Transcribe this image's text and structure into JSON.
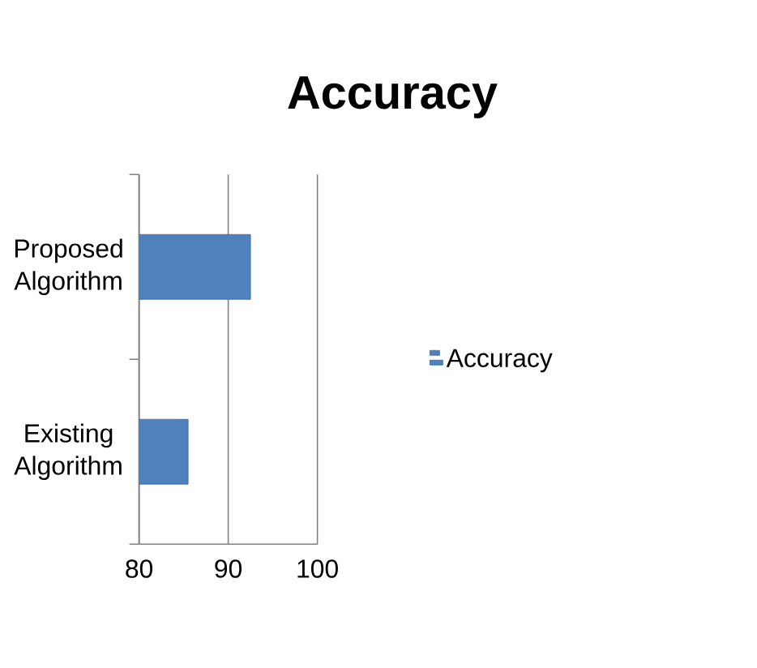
{
  "chart_data": {
    "type": "bar",
    "orientation": "horizontal",
    "title": "Accuracy",
    "categories": [
      "Proposed Algorithm",
      "Existing Algorithm"
    ],
    "series": [
      {
        "name": "Accuracy",
        "color": "#4f81bd",
        "values": [
          92.5,
          85.5
        ]
      }
    ],
    "xlim": [
      80,
      100
    ],
    "xticks": [
      80,
      90,
      100
    ],
    "grid": "x",
    "legend": "right"
  }
}
